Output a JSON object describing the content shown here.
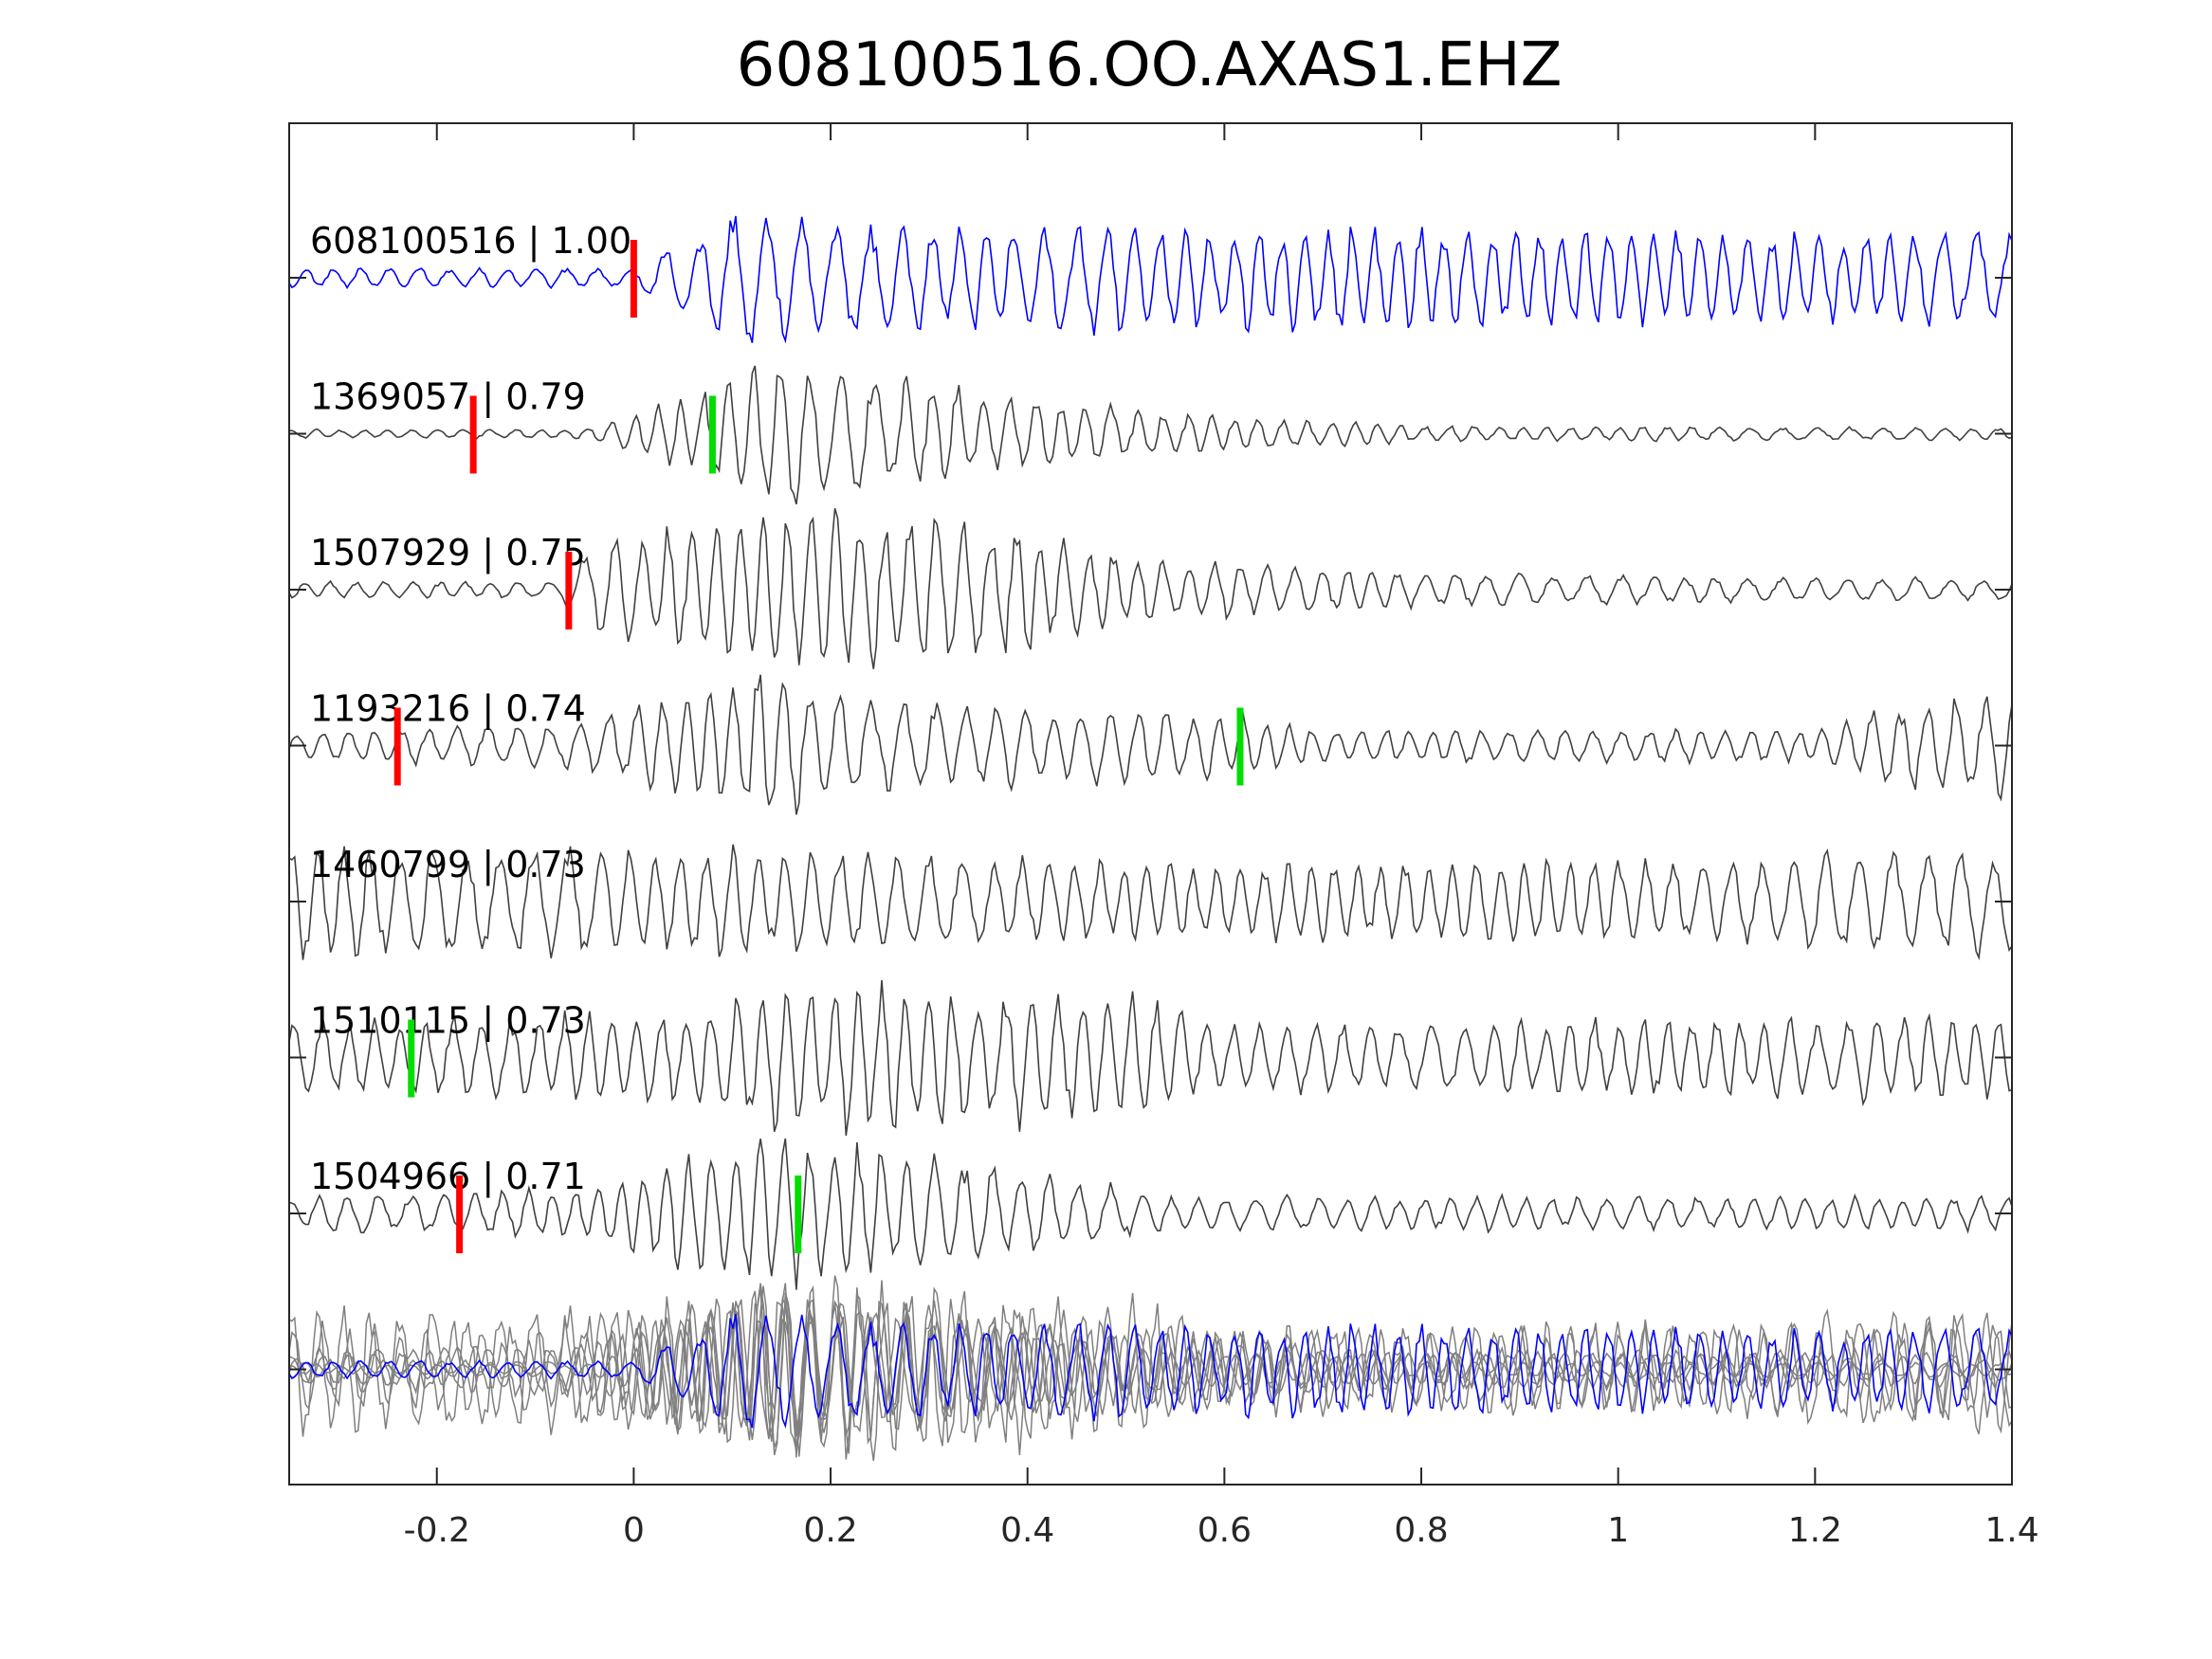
{
  "chart_data": {
    "type": "line",
    "title": "608100516.OO.AXAS1.EHZ",
    "xlabel": "",
    "ylabel": "",
    "xlim": [
      -0.35,
      1.4
    ],
    "xticks": [
      -0.2,
      0,
      0.2,
      0.4,
      0.6,
      0.8,
      1,
      1.2,
      1.4
    ],
    "xtick_labels": [
      "-0.2",
      "0",
      "0.2",
      "0.4",
      "0.6",
      "0.8",
      "1",
      "1.2",
      "1.4"
    ],
    "grid": false,
    "colors": {
      "template": "#0000ff",
      "trace": "#404040",
      "overlay": "#808080",
      "pick_p": "#ff0000",
      "pick_s": "#00dd00",
      "axis": "#262626"
    },
    "traces": [
      {
        "label": "608100516 | 1.00",
        "id": "608100516",
        "cc": "1.00",
        "template": true,
        "freq": 36,
        "seed": 11,
        "envelope": [
          [
            -0.35,
            0.12
          ],
          [
            0,
            0.12
          ],
          [
            0.05,
            0.5
          ],
          [
            0.12,
            0.85
          ],
          [
            0.2,
            0.65
          ],
          [
            1.4,
            0.55
          ]
        ],
        "picks": {
          "p": 0.0
        }
      },
      {
        "label": "1369057 | 0.79",
        "id": "1369057",
        "cc": "0.79",
        "freq": 36,
        "seed": 23,
        "envelope": [
          [
            -0.35,
            0.05
          ],
          [
            -0.05,
            0.06
          ],
          [
            0.05,
            0.4
          ],
          [
            0.12,
            0.95
          ],
          [
            0.2,
            0.8
          ],
          [
            0.35,
            0.5
          ],
          [
            0.6,
            0.2
          ],
          [
            0.8,
            0.1
          ],
          [
            1.4,
            0.07
          ]
        ],
        "picks": {
          "p": -0.163,
          "s": 0.08
        }
      },
      {
        "label": "1507929 | 0.75",
        "id": "1507929",
        "cc": "0.75",
        "freq": 36,
        "seed": 37,
        "envelope": [
          [
            -0.35,
            0.1
          ],
          [
            -0.08,
            0.1
          ],
          [
            -0.03,
            0.6
          ],
          [
            0.1,
            0.8
          ],
          [
            0.2,
            0.95
          ],
          [
            0.4,
            0.75
          ],
          [
            0.55,
            0.35
          ],
          [
            0.8,
            0.2
          ],
          [
            1.4,
            0.12
          ]
        ],
        "picks": {
          "p": -0.066
        }
      },
      {
        "label": "1193216 | 0.74",
        "id": "1193216",
        "cc": "0.74",
        "freq": 36,
        "seed": 41,
        "envelope": [
          [
            -0.35,
            0.15
          ],
          [
            -0.05,
            0.3
          ],
          [
            0.05,
            0.6
          ],
          [
            0.13,
            1.0
          ],
          [
            0.22,
            0.55
          ],
          [
            0.6,
            0.4
          ],
          [
            0.7,
            0.2
          ],
          [
            1.2,
            0.2
          ],
          [
            1.3,
            0.55
          ],
          [
            1.4,
            0.6
          ]
        ],
        "picks": {
          "p": -0.24,
          "s": 0.616
        }
      },
      {
        "label": "1460799 | 0.73",
        "id": "1460799",
        "cc": "0.73",
        "freq": 36,
        "seed": 53,
        "envelope": [
          [
            -0.35,
            0.7
          ],
          [
            0.2,
            0.6
          ],
          [
            0.6,
            0.45
          ],
          [
            1.0,
            0.5
          ],
          [
            1.4,
            0.65
          ]
        ],
        "picks": {}
      },
      {
        "label": "1510115 | 0.73",
        "id": "1510115",
        "cc": "0.73",
        "freq": 36,
        "seed": 67,
        "envelope": [
          [
            -0.35,
            0.45
          ],
          [
            0.05,
            0.5
          ],
          [
            0.15,
            0.9
          ],
          [
            0.5,
            0.75
          ],
          [
            0.6,
            0.4
          ],
          [
            1.4,
            0.5
          ]
        ],
        "picks": {
          "s": -0.226
        }
      },
      {
        "label": "1504966 | 0.71",
        "id": "1504966",
        "cc": "0.71",
        "freq": 36,
        "seed": 79,
        "envelope": [
          [
            -0.35,
            0.2
          ],
          [
            -0.05,
            0.3
          ],
          [
            0.05,
            0.7
          ],
          [
            0.15,
            0.9
          ],
          [
            0.3,
            0.75
          ],
          [
            0.4,
            0.5
          ],
          [
            0.55,
            0.2
          ],
          [
            1.4,
            0.2
          ]
        ],
        "picks": {
          "p": -0.177,
          "s": 0.167
        }
      }
    ]
  }
}
